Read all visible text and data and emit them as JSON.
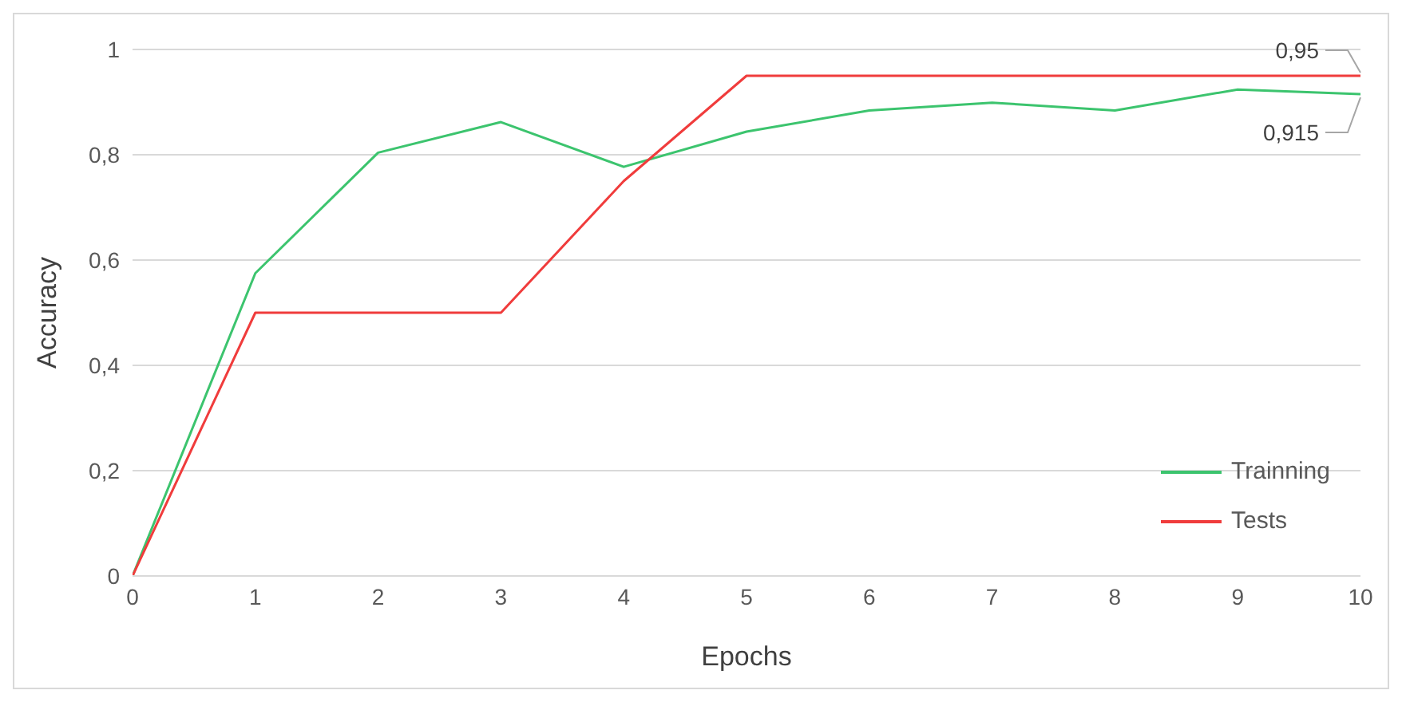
{
  "chart_data": {
    "type": "line",
    "xlabel": "Epochs",
    "ylabel": "Accuracy",
    "x": [
      0,
      1,
      2,
      3,
      4,
      5,
      6,
      7,
      8,
      9,
      10
    ],
    "series": [
      {
        "name": "Trainning",
        "color": "#3cc46e",
        "values": [
          0,
          0.575,
          0.804,
          0.862,
          0.777,
          0.844,
          0.884,
          0.899,
          0.884,
          0.924,
          0.915
        ]
      },
      {
        "name": "Tests",
        "color": "#f03c3c",
        "values": [
          0,
          0.5,
          0.5,
          0.5,
          0.75,
          0.95,
          0.95,
          0.95,
          0.95,
          0.95,
          0.95
        ]
      }
    ],
    "xlim": [
      0,
      10
    ],
    "xticks": [
      0,
      1,
      2,
      3,
      4,
      5,
      6,
      7,
      8,
      9,
      10
    ],
    "ylim": [
      0,
      1
    ],
    "yticks": [
      {
        "value": 0,
        "label": "0"
      },
      {
        "value": 0.2,
        "label": "0,2"
      },
      {
        "value": 0.4,
        "label": "0,4"
      },
      {
        "value": 0.6,
        "label": "0,6"
      },
      {
        "value": 0.8,
        "label": "0,8"
      },
      {
        "value": 1,
        "label": "1"
      }
    ],
    "annotations": [
      {
        "text": "0,95",
        "x": 10,
        "y": 0.95
      },
      {
        "text": "0,915",
        "x": 10,
        "y": 0.915
      }
    ],
    "grid": "y",
    "legend": "bottom right",
    "marker": "none",
    "line_style": "solid"
  }
}
